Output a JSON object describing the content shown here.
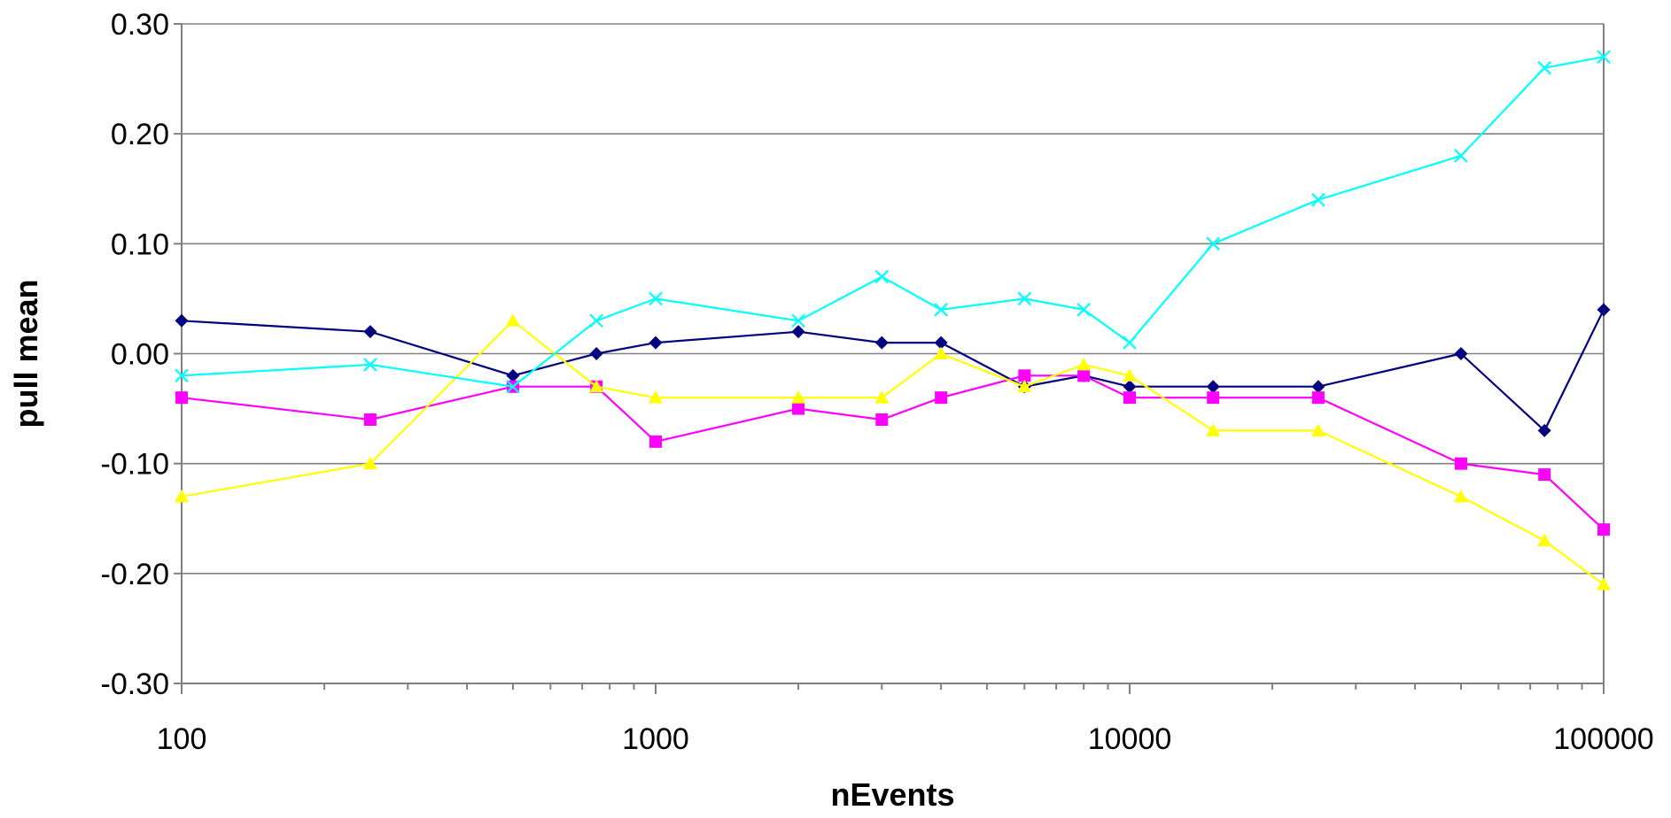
{
  "chart_data": {
    "type": "line",
    "xlabel": "nEvents",
    "ylabel": "pull mean",
    "x_scale": "log",
    "xlim": [
      100,
      100000
    ],
    "ylim": [
      -0.3,
      0.3
    ],
    "x_ticks": [
      "100",
      "1000",
      "10000",
      "100000"
    ],
    "y_ticks": [
      "0.30",
      "0.20",
      "0.10",
      "0.00",
      "-0.10",
      "-0.20",
      "-0.30"
    ],
    "grid": "horizontal",
    "legend": "none",
    "x": [
      100,
      250,
      500,
      750,
      1000,
      2000,
      3000,
      4000,
      6000,
      8000,
      10000,
      15000,
      25000,
      50000,
      75000,
      100000
    ],
    "series": [
      {
        "color": "#000080",
        "marker": "diamond",
        "values": [
          0.03,
          0.02,
          -0.02,
          0.0,
          0.01,
          0.02,
          0.01,
          0.01,
          -0.03,
          -0.02,
          -0.03,
          -0.03,
          -0.03,
          0.0,
          -0.07,
          0.04
        ]
      },
      {
        "color": "#ff00ff",
        "marker": "square",
        "values": [
          -0.04,
          -0.06,
          -0.03,
          -0.03,
          -0.08,
          -0.05,
          -0.06,
          -0.04,
          -0.02,
          -0.02,
          -0.04,
          -0.04,
          -0.04,
          -0.1,
          -0.11,
          -0.16
        ]
      },
      {
        "color": "#ffff00",
        "marker": "triangle",
        "values": [
          -0.13,
          -0.1,
          0.03,
          -0.03,
          -0.04,
          -0.04,
          -0.04,
          0.0,
          -0.03,
          -0.01,
          -0.02,
          -0.07,
          -0.07,
          -0.13,
          -0.17,
          -0.21
        ]
      },
      {
        "color": "#00ffff",
        "marker": "x",
        "values": [
          -0.02,
          -0.01,
          -0.03,
          0.03,
          0.05,
          0.03,
          0.07,
          0.04,
          0.05,
          0.04,
          0.01,
          0.1,
          0.14,
          0.18,
          0.26,
          0.27
        ]
      }
    ]
  }
}
